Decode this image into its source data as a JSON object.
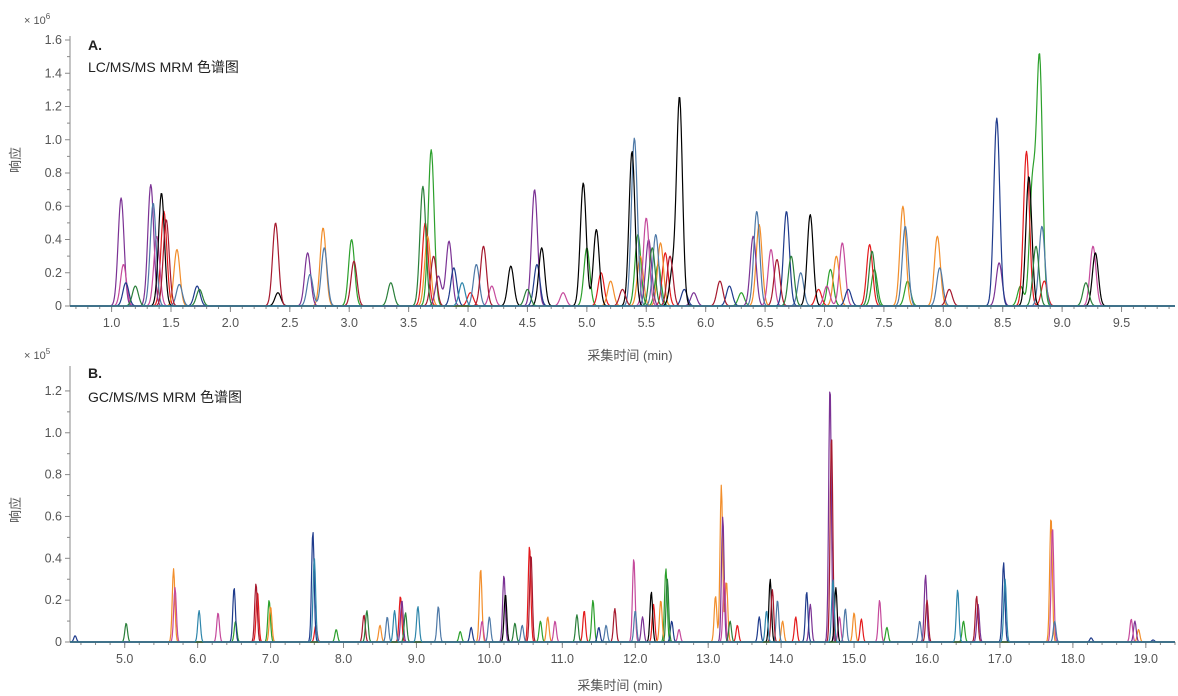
{
  "colors": {
    "axis": "#888888",
    "text": "#555555",
    "series": [
      "#2ca02c",
      "#e41a1c",
      "#f28e2b",
      "#7b3294",
      "#c54a9c",
      "#4e79a7",
      "#1f3b8c",
      "#000000",
      "#a6192e",
      "#2a7f3a",
      "#2e86ab",
      "#d0489b"
    ]
  },
  "chart_data": [
    {
      "type": "line",
      "panel_letter": "A.",
      "title": "LC/MS/MS MRM 色谱图",
      "xlabel": "采集时间 (min)",
      "ylabel": "响应",
      "y_multiplier_base": "× 10",
      "y_multiplier_exp": "6",
      "xlim": [
        0.65,
        9.95
      ],
      "ylim": [
        0,
        1.6
      ],
      "xticks": [
        "1.0",
        "1.5",
        "2.0",
        "2.5",
        "3.0",
        "3.5",
        "4.0",
        "4.5",
        "5.0",
        "5.5",
        "6.0",
        "6.5",
        "7.0",
        "7.5",
        "8.0",
        "8.5",
        "9.0",
        "9.5"
      ],
      "xtick_values": [
        1.0,
        1.5,
        2.0,
        2.5,
        3.0,
        3.5,
        4.0,
        4.5,
        5.0,
        5.5,
        6.0,
        6.5,
        7.0,
        7.5,
        8.0,
        8.5,
        9.0,
        9.5
      ],
      "yticks": [
        "0",
        "0.2",
        "0.4",
        "0.6",
        "0.8",
        "1.0",
        "1.2",
        "1.4",
        "1.6"
      ],
      "ytick_values": [
        0,
        0.2,
        0.4,
        0.6,
        0.8,
        1.0,
        1.2,
        1.4,
        1.6
      ],
      "peak_width": 0.025,
      "peaks": [
        [
          1.08,
          0.65,
          3
        ],
        [
          1.1,
          0.25,
          4
        ],
        [
          1.12,
          0.14,
          6
        ],
        [
          1.2,
          0.12,
          9
        ],
        [
          1.33,
          0.73,
          3
        ],
        [
          1.35,
          0.62,
          5
        ],
        [
          1.38,
          0.42,
          4
        ],
        [
          1.42,
          0.68,
          7
        ],
        [
          1.44,
          0.57,
          1
        ],
        [
          1.46,
          0.52,
          8
        ],
        [
          1.55,
          0.34,
          2
        ],
        [
          1.57,
          0.13,
          5
        ],
        [
          1.72,
          0.12,
          6
        ],
        [
          1.74,
          0.1,
          9
        ],
        [
          2.38,
          0.5,
          8
        ],
        [
          2.4,
          0.08,
          7
        ],
        [
          2.65,
          0.32,
          3
        ],
        [
          2.67,
          0.19,
          5
        ],
        [
          2.78,
          0.47,
          2
        ],
        [
          2.79,
          0.35,
          5
        ],
        [
          3.02,
          0.4,
          0
        ],
        [
          3.04,
          0.27,
          8
        ],
        [
          3.35,
          0.14,
          9
        ],
        [
          3.62,
          0.72,
          9
        ],
        [
          3.64,
          0.5,
          1
        ],
        [
          3.66,
          0.42,
          2
        ],
        [
          3.69,
          0.94,
          0
        ],
        [
          3.71,
          0.3,
          8
        ],
        [
          3.75,
          0.18,
          3
        ],
        [
          3.84,
          0.39,
          3
        ],
        [
          3.88,
          0.23,
          6
        ],
        [
          3.95,
          0.14,
          10
        ],
        [
          4.02,
          0.08,
          1
        ],
        [
          4.07,
          0.25,
          5
        ],
        [
          4.13,
          0.36,
          8
        ],
        [
          4.2,
          0.12,
          4
        ],
        [
          4.36,
          0.24,
          7
        ],
        [
          4.5,
          0.1,
          9
        ],
        [
          4.56,
          0.7,
          3
        ],
        [
          4.58,
          0.25,
          6
        ],
        [
          4.62,
          0.35,
          7
        ],
        [
          4.8,
          0.08,
          4
        ],
        [
          4.97,
          0.74,
          7
        ],
        [
          5.0,
          0.35,
          0
        ],
        [
          5.08,
          0.46,
          7
        ],
        [
          5.12,
          0.2,
          1
        ],
        [
          5.2,
          0.15,
          2
        ],
        [
          5.3,
          0.1,
          8
        ],
        [
          5.38,
          0.93,
          7
        ],
        [
          5.4,
          1.01,
          5
        ],
        [
          5.43,
          0.43,
          0
        ],
        [
          5.45,
          0.3,
          2
        ],
        [
          5.5,
          0.53,
          4
        ],
        [
          5.52,
          0.4,
          3
        ],
        [
          5.55,
          0.35,
          9
        ],
        [
          5.58,
          0.43,
          5
        ],
        [
          5.6,
          0.25,
          0
        ],
        [
          5.62,
          0.38,
          2
        ],
        [
          5.66,
          0.32,
          1
        ],
        [
          5.7,
          0.3,
          8
        ],
        [
          5.72,
          0.2,
          7
        ],
        [
          5.78,
          1.25,
          7
        ],
        [
          5.82,
          0.1,
          6
        ],
        [
          5.9,
          0.08,
          3
        ],
        [
          6.12,
          0.15,
          8
        ],
        [
          6.2,
          0.12,
          6
        ],
        [
          6.3,
          0.08,
          0
        ],
        [
          6.4,
          0.42,
          3
        ],
        [
          6.43,
          0.57,
          5
        ],
        [
          6.45,
          0.49,
          2
        ],
        [
          6.55,
          0.34,
          4
        ],
        [
          6.6,
          0.28,
          8
        ],
        [
          6.68,
          0.57,
          6
        ],
        [
          6.72,
          0.3,
          9
        ],
        [
          6.8,
          0.2,
          5
        ],
        [
          6.88,
          0.55,
          7
        ],
        [
          6.95,
          0.1,
          1
        ],
        [
          7.02,
          0.12,
          4
        ],
        [
          7.05,
          0.22,
          0
        ],
        [
          7.1,
          0.3,
          2
        ],
        [
          7.15,
          0.38,
          4
        ],
        [
          7.2,
          0.1,
          6
        ],
        [
          7.38,
          0.37,
          1
        ],
        [
          7.4,
          0.33,
          9
        ],
        [
          7.42,
          0.22,
          0
        ],
        [
          7.66,
          0.6,
          2
        ],
        [
          7.68,
          0.48,
          5
        ],
        [
          7.7,
          0.15,
          0
        ],
        [
          7.95,
          0.42,
          2
        ],
        [
          7.97,
          0.23,
          5
        ],
        [
          8.05,
          0.1,
          8
        ],
        [
          8.45,
          1.13,
          6
        ],
        [
          8.47,
          0.26,
          3
        ],
        [
          8.65,
          0.12,
          0
        ],
        [
          8.7,
          0.93,
          1
        ],
        [
          8.72,
          0.78,
          7
        ],
        [
          8.75,
          0.72,
          0
        ],
        [
          8.78,
          0.36,
          9
        ],
        [
          8.81,
          1.48,
          0
        ],
        [
          8.83,
          0.48,
          5
        ],
        [
          8.85,
          0.15,
          1
        ],
        [
          9.2,
          0.14,
          9
        ],
        [
          9.26,
          0.36,
          4
        ],
        [
          9.28,
          0.32,
          7
        ]
      ]
    },
    {
      "type": "line",
      "panel_letter": "B.",
      "title": "GC/MS/MS MRM 色谱图",
      "xlabel": "采集时间 (min)",
      "ylabel": "响应",
      "y_multiplier_base": "× 10",
      "y_multiplier_exp": "5",
      "xlim": [
        4.25,
        19.4
      ],
      "ylim": [
        0,
        1.3
      ],
      "xticks": [
        "5.0",
        "6.0",
        "7.0",
        "8.0",
        "9.0",
        "10.0",
        "11.0",
        "12.0",
        "13.0",
        "14.0",
        "15.0",
        "16.0",
        "17.0",
        "18.0",
        "19.0"
      ],
      "xtick_values": [
        5,
        6,
        7,
        8,
        9,
        10,
        11,
        12,
        13,
        14,
        15,
        16,
        17,
        18,
        19
      ],
      "yticks": [
        "0",
        "0.2",
        "0.4",
        "0.6",
        "0.8",
        "1.0",
        "1.2"
      ],
      "ytick_values": [
        0,
        0.2,
        0.4,
        0.6,
        0.8,
        1.0,
        1.2
      ],
      "peak_width": 0.018,
      "peaks": [
        [
          4.32,
          0.03,
          6
        ],
        [
          5.02,
          0.09,
          9
        ],
        [
          5.67,
          0.35,
          2
        ],
        [
          5.69,
          0.26,
          4
        ],
        [
          6.02,
          0.15,
          10
        ],
        [
          6.28,
          0.14,
          4
        ],
        [
          6.5,
          0.26,
          6
        ],
        [
          6.52,
          0.1,
          0
        ],
        [
          6.8,
          0.28,
          8
        ],
        [
          6.82,
          0.24,
          1
        ],
        [
          6.98,
          0.2,
          0
        ],
        [
          7.0,
          0.17,
          2
        ],
        [
          7.58,
          0.53,
          6
        ],
        [
          7.6,
          0.4,
          10
        ],
        [
          7.62,
          0.08,
          1
        ],
        [
          7.9,
          0.06,
          0
        ],
        [
          8.28,
          0.13,
          8
        ],
        [
          8.32,
          0.15,
          9
        ],
        [
          8.5,
          0.08,
          2
        ],
        [
          8.6,
          0.12,
          5
        ],
        [
          8.7,
          0.15,
          10
        ],
        [
          8.78,
          0.22,
          1
        ],
        [
          8.8,
          0.2,
          3
        ],
        [
          8.85,
          0.14,
          9
        ],
        [
          9.02,
          0.17,
          10
        ],
        [
          9.3,
          0.17,
          5
        ],
        [
          9.6,
          0.05,
          0
        ],
        [
          9.75,
          0.07,
          6
        ],
        [
          9.88,
          0.35,
          2
        ],
        [
          9.9,
          0.1,
          4
        ],
        [
          10.0,
          0.12,
          5
        ],
        [
          10.2,
          0.32,
          3
        ],
        [
          10.22,
          0.23,
          7
        ],
        [
          10.35,
          0.09,
          9
        ],
        [
          10.45,
          0.08,
          5
        ],
        [
          10.55,
          0.46,
          1
        ],
        [
          10.57,
          0.42,
          8
        ],
        [
          10.7,
          0.1,
          0
        ],
        [
          10.8,
          0.12,
          2
        ],
        [
          10.9,
          0.1,
          4
        ],
        [
          11.2,
          0.13,
          9
        ],
        [
          11.3,
          0.15,
          1
        ],
        [
          11.42,
          0.2,
          0
        ],
        [
          11.5,
          0.07,
          6
        ],
        [
          11.6,
          0.08,
          5
        ],
        [
          11.72,
          0.16,
          8
        ],
        [
          11.98,
          0.4,
          4
        ],
        [
          12.0,
          0.15,
          5
        ],
        [
          12.1,
          0.12,
          3
        ],
        [
          12.22,
          0.24,
          7
        ],
        [
          12.25,
          0.18,
          1
        ],
        [
          12.35,
          0.2,
          2
        ],
        [
          12.42,
          0.35,
          0
        ],
        [
          12.44,
          0.3,
          9
        ],
        [
          12.5,
          0.1,
          6
        ],
        [
          12.6,
          0.06,
          4
        ],
        [
          13.1,
          0.22,
          2
        ],
        [
          13.18,
          0.75,
          2
        ],
        [
          13.2,
          0.6,
          3
        ],
        [
          13.22,
          0.3,
          4
        ],
        [
          13.25,
          0.29,
          2
        ],
        [
          13.3,
          0.1,
          9
        ],
        [
          13.4,
          0.08,
          1
        ],
        [
          13.7,
          0.12,
          6
        ],
        [
          13.8,
          0.15,
          10
        ],
        [
          13.85,
          0.3,
          7
        ],
        [
          13.88,
          0.25,
          8
        ],
        [
          13.95,
          0.2,
          5
        ],
        [
          14.02,
          0.1,
          2
        ],
        [
          14.2,
          0.12,
          1
        ],
        [
          14.35,
          0.24,
          6
        ],
        [
          14.4,
          0.18,
          3
        ],
        [
          14.67,
          1.23,
          3
        ],
        [
          14.69,
          0.99,
          8
        ],
        [
          14.71,
          0.3,
          10
        ],
        [
          14.75,
          0.26,
          7
        ],
        [
          14.8,
          0.12,
          4
        ],
        [
          14.88,
          0.16,
          5
        ],
        [
          15.0,
          0.14,
          2
        ],
        [
          15.1,
          0.11,
          1
        ],
        [
          15.35,
          0.2,
          4
        ],
        [
          15.45,
          0.07,
          0
        ],
        [
          15.9,
          0.1,
          5
        ],
        [
          15.98,
          0.32,
          3
        ],
        [
          16.0,
          0.2,
          8
        ],
        [
          16.42,
          0.25,
          10
        ],
        [
          16.5,
          0.1,
          0
        ],
        [
          16.68,
          0.22,
          8
        ],
        [
          16.7,
          0.18,
          3
        ],
        [
          17.05,
          0.38,
          6
        ],
        [
          17.07,
          0.3,
          10
        ],
        [
          17.7,
          0.6,
          2
        ],
        [
          17.72,
          0.55,
          4
        ],
        [
          17.75,
          0.1,
          5
        ],
        [
          18.25,
          0.02,
          6
        ],
        [
          18.8,
          0.11,
          4
        ],
        [
          18.85,
          0.1,
          3
        ],
        [
          18.9,
          0.06,
          2
        ],
        [
          19.1,
          0.01,
          6
        ]
      ]
    }
  ]
}
